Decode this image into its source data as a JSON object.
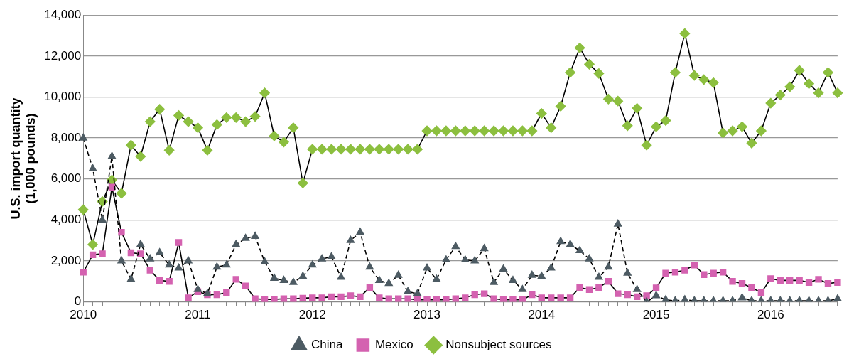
{
  "chart_data": {
    "type": "line",
    "ylabel": "U.S. import quantity\n(1,000 pounds)",
    "categories": [
      "2010",
      null,
      null,
      null,
      null,
      null,
      null,
      null,
      null,
      null,
      null,
      null,
      "2011",
      null,
      null,
      null,
      null,
      null,
      null,
      null,
      null,
      null,
      null,
      null,
      "2012",
      null,
      null,
      null,
      null,
      null,
      null,
      null,
      null,
      null,
      null,
      null,
      "2013",
      null,
      null,
      null,
      null,
      null,
      null,
      null,
      null,
      null,
      null,
      null,
      "2014",
      null,
      null,
      null,
      null,
      null,
      null,
      null,
      null,
      null,
      null,
      null,
      "2015",
      null,
      null,
      null,
      null,
      null,
      null,
      null,
      null,
      null,
      null,
      null,
      "2016",
      null,
      null,
      null,
      null,
      null,
      null,
      null
    ],
    "series": [
      {
        "name": "China",
        "color": "#4d5b63",
        "marker": "triangle",
        "line_style": "dashed",
        "values": [
          8000,
          6500,
          4000,
          7100,
          2000,
          1100,
          2800,
          2100,
          2400,
          1800,
          1650,
          2000,
          600,
          400,
          1700,
          1800,
          2800,
          3100,
          3200,
          1950,
          1150,
          1050,
          950,
          1250,
          1800,
          2100,
          2200,
          1200,
          3000,
          3400,
          1700,
          1050,
          900,
          1300,
          500,
          400,
          1650,
          1100,
          2050,
          2700,
          2050,
          2000,
          2600,
          950,
          1600,
          1050,
          600,
          1300,
          1250,
          1650,
          2950,
          2800,
          2500,
          2100,
          1200,
          1700,
          3800,
          1400,
          600,
          0,
          300,
          100,
          50,
          100,
          50,
          50,
          50,
          50,
          50,
          200,
          50,
          50,
          50,
          50,
          50,
          50,
          50,
          50,
          50,
          150
        ]
      },
      {
        "name": "Mexico",
        "color": "#d462b0",
        "marker": "square",
        "line_style": "solid",
        "values": [
          1450,
          2300,
          2350,
          5600,
          3400,
          2400,
          2350,
          1550,
          1050,
          1000,
          2900,
          200,
          500,
          350,
          350,
          450,
          1100,
          780,
          150,
          120,
          120,
          150,
          150,
          180,
          200,
          200,
          250,
          250,
          300,
          250,
          700,
          200,
          150,
          150,
          150,
          100,
          100,
          100,
          100,
          150,
          200,
          350,
          400,
          150,
          100,
          100,
          100,
          350,
          200,
          200,
          200,
          200,
          700,
          600,
          700,
          1000,
          400,
          350,
          250,
          300,
          680,
          1400,
          1450,
          1550,
          1800,
          1330,
          1400,
          1450,
          1000,
          900,
          700,
          450,
          1130,
          1050,
          1050,
          1050,
          950,
          1100,
          900,
          950
        ]
      },
      {
        "name": "Nonsubject sources",
        "color": "#8cbf3f",
        "marker": "diamond",
        "line_style": "solid",
        "values": [
          4500,
          2800,
          4900,
          5950,
          5300,
          7650,
          7100,
          8800,
          9400,
          7400,
          9100,
          8800,
          8500,
          7400,
          8650,
          9000,
          9000,
          8800,
          9050,
          10200,
          8100,
          7800,
          8500,
          5800,
          7450,
          7450,
          7450,
          7450,
          7450,
          7450,
          7450,
          7450,
          7450,
          7450,
          7450,
          7450,
          8350,
          8350,
          8350,
          8350,
          8350,
          8350,
          8350,
          8350,
          8350,
          8350,
          8350,
          8350,
          9200,
          8500,
          9550,
          11200,
          12400,
          11600,
          11150,
          9900,
          9800,
          8600,
          9450,
          7650,
          8550,
          8850,
          11200,
          13100,
          11050,
          10850,
          10700,
          8250,
          8350,
          8550,
          7750,
          8350,
          9700,
          10100,
          10500,
          11300,
          10650,
          10200,
          11200,
          10200
        ]
      }
    ],
    "ylim": [
      0,
      14000
    ],
    "yticks": [
      {
        "value": 0,
        "label": "0"
      },
      {
        "value": 2000,
        "label": "2,000"
      },
      {
        "value": 4000,
        "label": "4,000"
      },
      {
        "value": 6000,
        "label": "6,000"
      },
      {
        "value": 8000,
        "label": "8,000"
      },
      {
        "value": 10000,
        "label": "10,000"
      },
      {
        "value": 12000,
        "label": "12,000"
      },
      {
        "value": 14000,
        "label": "14,000"
      }
    ],
    "grid": "y",
    "legend": "bottom"
  }
}
